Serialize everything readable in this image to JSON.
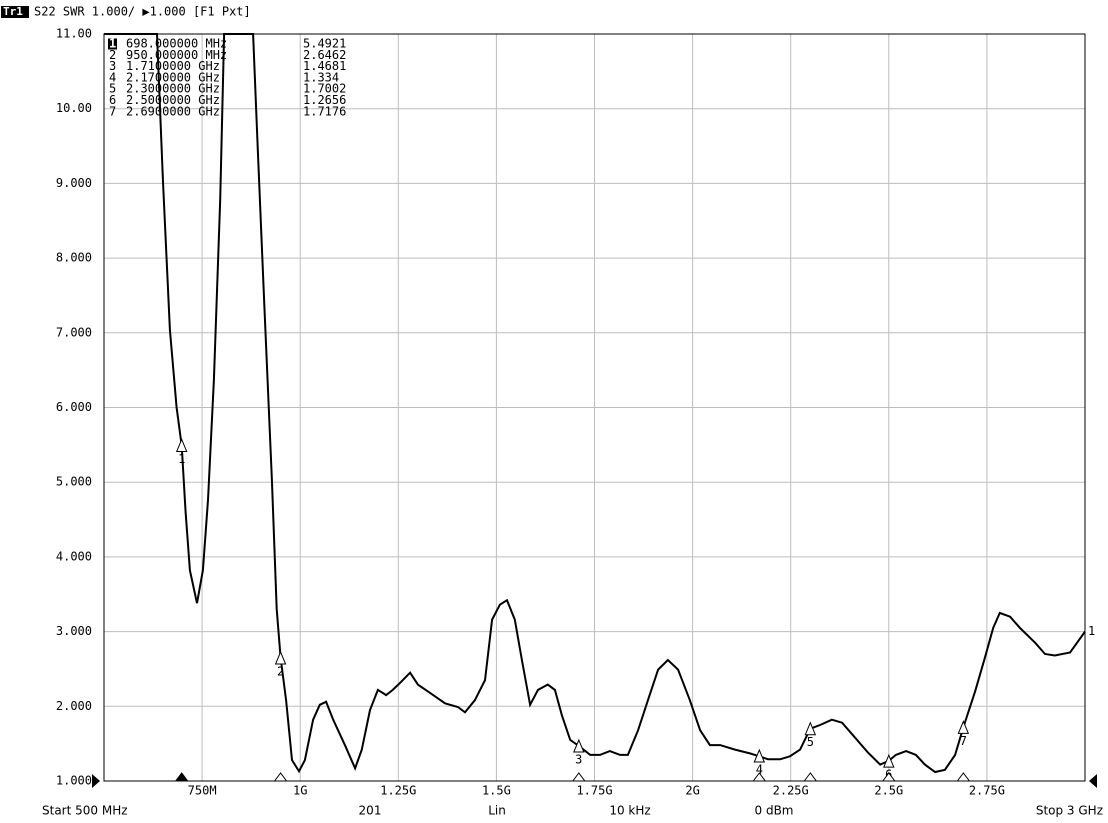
{
  "header": {
    "trace": "Tr1",
    "text": "S22 SWR 1.000/ ▶1.000 [F1 Pxt]"
  },
  "chart_data": {
    "type": "line",
    "xlim": [
      500,
      3000
    ],
    "ylim": [
      1,
      11
    ],
    "xticks": [
      {
        "value": 750,
        "label": "750M"
      },
      {
        "value": 1000,
        "label": "1G"
      },
      {
        "value": 1250,
        "label": "1.25G"
      },
      {
        "value": 1500,
        "label": "1.5G"
      },
      {
        "value": 1750,
        "label": "1.75G"
      },
      {
        "value": 2000,
        "label": "2G"
      },
      {
        "value": 2250,
        "label": "2.25G"
      },
      {
        "value": 2500,
        "label": "2.5G"
      },
      {
        "value": 2750,
        "label": "2.75G"
      }
    ],
    "yticks": [
      {
        "value": 1,
        "label": "1.000"
      },
      {
        "value": 2,
        "label": "2.000"
      },
      {
        "value": 3,
        "label": "3.000"
      },
      {
        "value": 4,
        "label": "4.000"
      },
      {
        "value": 5,
        "label": "5.000"
      },
      {
        "value": 6,
        "label": "6.000"
      },
      {
        "value": 7,
        "label": "7.000"
      },
      {
        "value": 8,
        "label": "8.000"
      },
      {
        "value": 9,
        "label": "9.000"
      },
      {
        "value": 10,
        "label": "10.00"
      },
      {
        "value": 11,
        "label": "11.00"
      }
    ],
    "grid": true,
    "series": [
      {
        "name": "1",
        "color": "#000000",
        "x": [
          500,
          635,
          650,
          668,
          685,
          698,
          708,
          719,
          737,
          752,
          765,
          780,
          796,
          806,
          880,
          892,
          908,
          928,
          940,
          950,
          964,
          979,
          997,
          1012,
          1033,
          1050,
          1066,
          1084,
          1114,
          1140,
          1157,
          1178,
          1198,
          1219,
          1236,
          1254,
          1280,
          1300,
          1331,
          1369,
          1402,
          1420,
          1445,
          1471,
          1489,
          1509,
          1527,
          1547,
          1565,
          1586,
          1606,
          1631,
          1649,
          1667,
          1688,
          1710,
          1739,
          1764,
          1789,
          1815,
          1835,
          1861,
          1886,
          1912,
          1937,
          1963,
          1993,
          2019,
          2044,
          2070,
          2108,
          2146,
          2170,
          2192,
          2223,
          2248,
          2274,
          2300,
          2325,
          2355,
          2381,
          2414,
          2447,
          2478,
          2500,
          2518,
          2544,
          2569,
          2592,
          2618,
          2643,
          2669,
          2690,
          2720,
          2745,
          2766,
          2783,
          2809,
          2834,
          2873,
          2898,
          2923,
          2962,
          3000
        ],
        "values": [
          11,
          11,
          9.05,
          7.04,
          6.0,
          5.49,
          4.6,
          3.82,
          3.38,
          3.82,
          4.76,
          6.37,
          8.78,
          11,
          11,
          9.45,
          7.44,
          5.03,
          3.3,
          2.65,
          2.08,
          1.28,
          1.13,
          1.28,
          1.82,
          2.02,
          2.06,
          1.82,
          1.48,
          1.17,
          1.42,
          1.95,
          2.22,
          2.15,
          2.22,
          2.31,
          2.45,
          2.29,
          2.18,
          2.04,
          1.99,
          1.92,
          2.08,
          2.35,
          3.16,
          3.36,
          3.42,
          3.16,
          2.62,
          2.02,
          2.22,
          2.29,
          2.22,
          1.88,
          1.55,
          1.47,
          1.35,
          1.35,
          1.4,
          1.35,
          1.35,
          1.68,
          2.08,
          2.49,
          2.62,
          2.49,
          2.08,
          1.68,
          1.48,
          1.48,
          1.42,
          1.37,
          1.33,
          1.29,
          1.29,
          1.33,
          1.42,
          1.7,
          1.75,
          1.82,
          1.78,
          1.58,
          1.38,
          1.22,
          1.27,
          1.35,
          1.4,
          1.35,
          1.22,
          1.12,
          1.15,
          1.35,
          1.72,
          2.2,
          2.65,
          3.05,
          3.25,
          3.2,
          3.05,
          2.85,
          2.7,
          2.68,
          2.72,
          3.0
        ]
      }
    ],
    "markers": {
      "names": [
        "1",
        "2",
        "3",
        "4",
        "5",
        "6",
        "7"
      ],
      "x": [
        698,
        950,
        1710,
        2170,
        2300,
        2500,
        2690
      ],
      "values": [
        5.4921,
        2.6462,
        1.4681,
        1.334,
        1.7002,
        1.2656,
        1.7176
      ],
      "x_labels": [
        "698.000000 MHz",
        "950.000000 MHz",
        "1.7100000 GHz",
        "2.1700000 GHz",
        "2.3000000 GHz",
        "2.5000000 GHz",
        "2.6900000 GHz"
      ]
    }
  },
  "footer": [
    "Start 500 MHz",
    "201",
    "Lin",
    "10 kHz",
    "0 dBm",
    "Stop 3 GHz"
  ]
}
